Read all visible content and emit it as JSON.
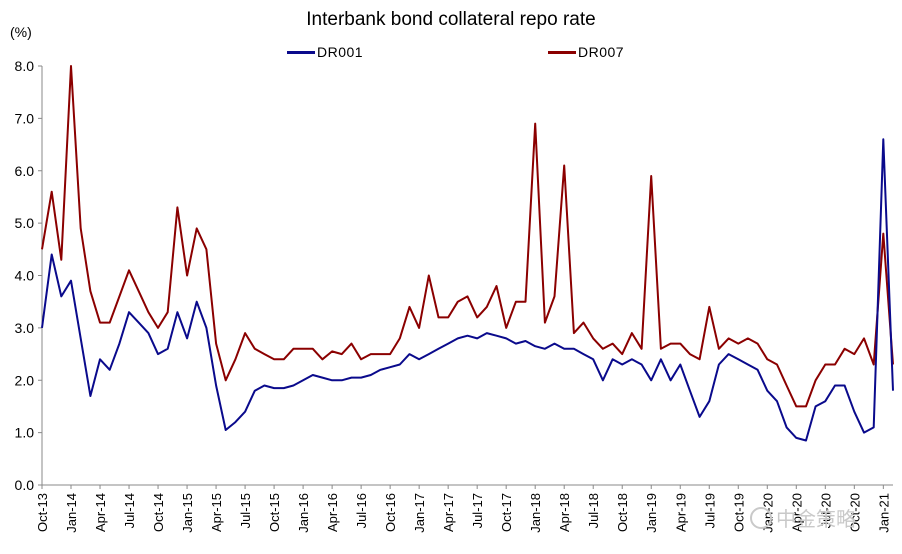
{
  "chart_data": {
    "type": "line",
    "title": "Interbank bond collateral repo rate",
    "unit_label": "(%)",
    "y_ticks": [
      "0.0",
      "1.0",
      "2.0",
      "3.0",
      "4.0",
      "5.0",
      "6.0",
      "7.0",
      "8.0"
    ],
    "ylim": [
      0,
      8
    ],
    "x_ticks": [
      "Oct-13",
      "Jan-14",
      "Apr-14",
      "Jul-14",
      "Oct-14",
      "Jan-15",
      "Apr-15",
      "Jul-15",
      "Oct-15",
      "Jan-16",
      "Apr-16",
      "Jul-16",
      "Oct-16",
      "Jan-17",
      "Apr-17",
      "Jul-17",
      "Oct-17",
      "Jan-18",
      "Apr-18",
      "Jul-18",
      "Oct-18",
      "Jan-19",
      "Apr-19",
      "Jul-19",
      "Oct-19",
      "Jan-20",
      "Apr-20",
      "Jul-20",
      "Oct-20",
      "Jan-21"
    ],
    "x_unit": "month",
    "grid": false,
    "legend": "top-center",
    "colors": {
      "DR001": "#0a0a8c",
      "DR007": "#8b0000"
    },
    "series": [
      {
        "name": "DR001",
        "values": [
          [
            "Oct-13",
            3.0
          ],
          [
            "Nov-13",
            4.4
          ],
          [
            "Dec-13",
            3.6
          ],
          [
            "Jan-14",
            3.9
          ],
          [
            "Feb-14",
            2.8
          ],
          [
            "Mar-14",
            1.7
          ],
          [
            "Apr-14",
            2.4
          ],
          [
            "May-14",
            2.2
          ],
          [
            "Jun-14",
            2.7
          ],
          [
            "Jul-14",
            3.3
          ],
          [
            "Aug-14",
            3.1
          ],
          [
            "Sep-14",
            2.9
          ],
          [
            "Oct-14",
            2.5
          ],
          [
            "Nov-14",
            2.6
          ],
          [
            "Dec-14",
            3.3
          ],
          [
            "Jan-15",
            2.8
          ],
          [
            "Feb-15",
            3.5
          ],
          [
            "Mar-15",
            3.0
          ],
          [
            "Apr-15",
            1.9
          ],
          [
            "May-15",
            1.05
          ],
          [
            "Jun-15",
            1.2
          ],
          [
            "Jul-15",
            1.4
          ],
          [
            "Aug-15",
            1.8
          ],
          [
            "Sep-15",
            1.9
          ],
          [
            "Oct-15",
            1.85
          ],
          [
            "Nov-15",
            1.85
          ],
          [
            "Dec-15",
            1.9
          ],
          [
            "Jan-16",
            2.0
          ],
          [
            "Feb-16",
            2.1
          ],
          [
            "Mar-16",
            2.05
          ],
          [
            "Apr-16",
            2.0
          ],
          [
            "May-16",
            2.0
          ],
          [
            "Jun-16",
            2.05
          ],
          [
            "Jul-16",
            2.05
          ],
          [
            "Aug-16",
            2.1
          ],
          [
            "Sep-16",
            2.2
          ],
          [
            "Oct-16",
            2.25
          ],
          [
            "Nov-16",
            2.3
          ],
          [
            "Dec-16",
            2.5
          ],
          [
            "Jan-17",
            2.4
          ],
          [
            "Feb-17",
            2.5
          ],
          [
            "Mar-17",
            2.6
          ],
          [
            "Apr-17",
            2.7
          ],
          [
            "May-17",
            2.8
          ],
          [
            "Jun-17",
            2.85
          ],
          [
            "Jul-17",
            2.8
          ],
          [
            "Aug-17",
            2.9
          ],
          [
            "Sep-17",
            2.85
          ],
          [
            "Oct-17",
            2.8
          ],
          [
            "Nov-17",
            2.7
          ],
          [
            "Dec-17",
            2.75
          ],
          [
            "Jan-18",
            2.65
          ],
          [
            "Feb-18",
            2.6
          ],
          [
            "Mar-18",
            2.7
          ],
          [
            "Apr-18",
            2.6
          ],
          [
            "May-18",
            2.6
          ],
          [
            "Jun-18",
            2.5
          ],
          [
            "Jul-18",
            2.4
          ],
          [
            "Aug-18",
            2.0
          ],
          [
            "Sep-18",
            2.4
          ],
          [
            "Oct-18",
            2.3
          ],
          [
            "Nov-18",
            2.4
          ],
          [
            "Dec-18",
            2.3
          ],
          [
            "Jan-19",
            2.0
          ],
          [
            "Feb-19",
            2.4
          ],
          [
            "Mar-19",
            2.0
          ],
          [
            "Apr-19",
            2.3
          ],
          [
            "May-19",
            1.8
          ],
          [
            "Jun-19",
            1.3
          ],
          [
            "Jul-19",
            1.6
          ],
          [
            "Aug-19",
            2.3
          ],
          [
            "Sep-19",
            2.5
          ],
          [
            "Oct-19",
            2.4
          ],
          [
            "Nov-19",
            2.3
          ],
          [
            "Dec-19",
            2.2
          ],
          [
            "Jan-20",
            1.8
          ],
          [
            "Feb-20",
            1.6
          ],
          [
            "Mar-20",
            1.1
          ],
          [
            "Apr-20",
            0.9
          ],
          [
            "May-20",
            0.85
          ],
          [
            "Jun-20",
            1.5
          ],
          [
            "Jul-20",
            1.6
          ],
          [
            "Aug-20",
            1.9
          ],
          [
            "Sep-20",
            1.9
          ],
          [
            "Oct-20",
            1.4
          ],
          [
            "Nov-20",
            1.0
          ],
          [
            "Dec-20",
            1.1
          ],
          [
            "Jan-21",
            6.6
          ],
          [
            "Feb-21",
            1.8
          ]
        ]
      },
      {
        "name": "DR007",
        "values": [
          [
            "Oct-13",
            4.5
          ],
          [
            "Nov-13",
            5.6
          ],
          [
            "Dec-13",
            4.3
          ],
          [
            "Jan-14",
            8.0
          ],
          [
            "Feb-14",
            4.9
          ],
          [
            "Mar-14",
            3.7
          ],
          [
            "Apr-14",
            3.1
          ],
          [
            "May-14",
            3.1
          ],
          [
            "Jun-14",
            3.6
          ],
          [
            "Jul-14",
            4.1
          ],
          [
            "Aug-14",
            3.7
          ],
          [
            "Sep-14",
            3.3
          ],
          [
            "Oct-14",
            3.0
          ],
          [
            "Nov-14",
            3.3
          ],
          [
            "Dec-14",
            5.3
          ],
          [
            "Jan-15",
            4.0
          ],
          [
            "Feb-15",
            4.9
          ],
          [
            "Mar-15",
            4.5
          ],
          [
            "Apr-15",
            2.7
          ],
          [
            "May-15",
            2.0
          ],
          [
            "Jun-15",
            2.4
          ],
          [
            "Jul-15",
            2.9
          ],
          [
            "Aug-15",
            2.6
          ],
          [
            "Sep-15",
            2.5
          ],
          [
            "Oct-15",
            2.4
          ],
          [
            "Nov-15",
            2.4
          ],
          [
            "Dec-15",
            2.6
          ],
          [
            "Jan-16",
            2.6
          ],
          [
            "Feb-16",
            2.6
          ],
          [
            "Mar-16",
            2.4
          ],
          [
            "Apr-16",
            2.55
          ],
          [
            "May-16",
            2.5
          ],
          [
            "Jun-16",
            2.7
          ],
          [
            "Jul-16",
            2.4
          ],
          [
            "Aug-16",
            2.5
          ],
          [
            "Sep-16",
            2.5
          ],
          [
            "Oct-16",
            2.5
          ],
          [
            "Nov-16",
            2.8
          ],
          [
            "Dec-16",
            3.4
          ],
          [
            "Jan-17",
            3.0
          ],
          [
            "Feb-17",
            4.0
          ],
          [
            "Mar-17",
            3.2
          ],
          [
            "Apr-17",
            3.2
          ],
          [
            "May-17",
            3.5
          ],
          [
            "Jun-17",
            3.6
          ],
          [
            "Jul-17",
            3.2
          ],
          [
            "Aug-17",
            3.4
          ],
          [
            "Sep-17",
            3.8
          ],
          [
            "Oct-17",
            3.0
          ],
          [
            "Nov-17",
            3.5
          ],
          [
            "Dec-17",
            3.5
          ],
          [
            "Jan-18",
            6.9
          ],
          [
            "Feb-18",
            3.1
          ],
          [
            "Mar-18",
            3.6
          ],
          [
            "Apr-18",
            6.1
          ],
          [
            "May-18",
            2.9
          ],
          [
            "Jun-18",
            3.1
          ],
          [
            "Jul-18",
            2.8
          ],
          [
            "Aug-18",
            2.6
          ],
          [
            "Sep-18",
            2.7
          ],
          [
            "Oct-18",
            2.5
          ],
          [
            "Nov-18",
            2.9
          ],
          [
            "Dec-18",
            2.6
          ],
          [
            "Jan-19",
            5.9
          ],
          [
            "Feb-19",
            2.6
          ],
          [
            "Mar-19",
            2.7
          ],
          [
            "Apr-19",
            2.7
          ],
          [
            "May-19",
            2.5
          ],
          [
            "Jun-19",
            2.4
          ],
          [
            "Jul-19",
            3.4
          ],
          [
            "Aug-19",
            2.6
          ],
          [
            "Sep-19",
            2.8
          ],
          [
            "Oct-19",
            2.7
          ],
          [
            "Nov-19",
            2.8
          ],
          [
            "Dec-19",
            2.7
          ],
          [
            "Jan-20",
            2.4
          ],
          [
            "Feb-20",
            2.3
          ],
          [
            "Mar-20",
            1.9
          ],
          [
            "Apr-20",
            1.5
          ],
          [
            "May-20",
            1.5
          ],
          [
            "Jun-20",
            2.0
          ],
          [
            "Jul-20",
            2.3
          ],
          [
            "Aug-20",
            2.3
          ],
          [
            "Sep-20",
            2.6
          ],
          [
            "Oct-20",
            2.5
          ],
          [
            "Nov-20",
            2.8
          ],
          [
            "Dec-20",
            2.3
          ],
          [
            "Jan-21",
            4.8
          ],
          [
            "Feb-21",
            2.3
          ]
        ]
      }
    ]
  },
  "watermark": {
    "text": "中金策略"
  }
}
